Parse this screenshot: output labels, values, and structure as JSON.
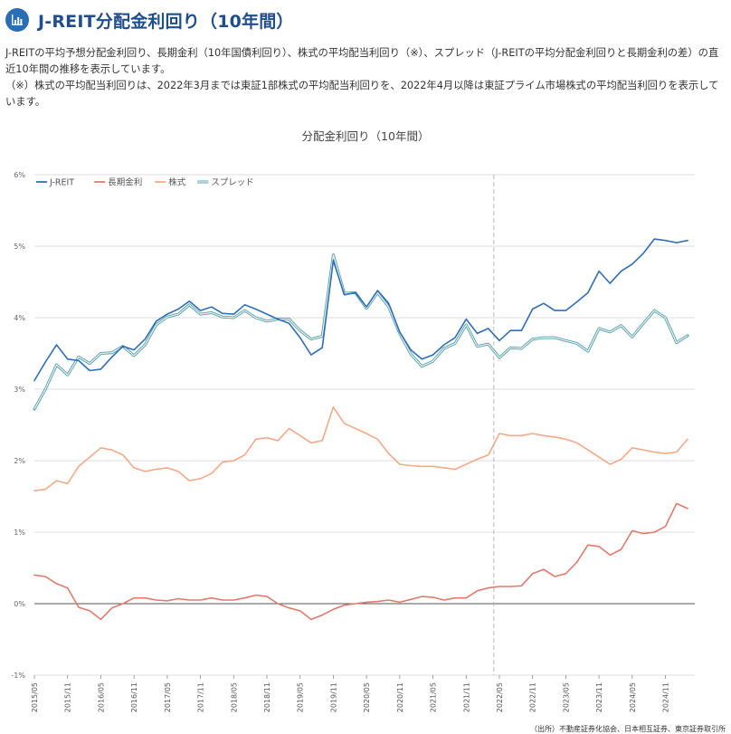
{
  "header": {
    "title": "J-REIT分配金利回り（10年間）",
    "icon": "bar-chart-icon"
  },
  "description": {
    "line1": "J-REITの平均予想分配金利回り、長期金利（10年国債利回り）、株式の平均配当利回り（※）、スプレッド（J-REITの平均分配金利回りと長期金利の差）の直近10年間の推移を表示しています。",
    "line2": "（※）株式の平均配当利回りは、2022年3月までは東証1部株式の平均配当利回りを、2022年4月以降は東証プライム市場株式の平均配当利回りを表示しています。"
  },
  "source": "（出所）不動産証券化協会、日本相互証券、東京証券取引所",
  "chart_data": {
    "type": "line",
    "title": "分配金利回り（10年間）",
    "xlabel": "",
    "ylabel": "",
    "ylim": [
      -1,
      6
    ],
    "y_ticks": [
      "6%",
      "5%",
      "4%",
      "3%",
      "2%",
      "1%",
      "0%",
      "-1%"
    ],
    "x_tick_labels": [
      "2015/05",
      "2015/11",
      "2016/05",
      "2016/11",
      "2017/05",
      "2017/11",
      "2018/05",
      "2018/11",
      "2019/05",
      "2019/11",
      "2020/05",
      "2020/11",
      "2021/05",
      "2021/11",
      "2022/05",
      "2022/11",
      "2023/05",
      "2023/11",
      "2024/05",
      "2024/11"
    ],
    "x": [
      "2015/05",
      "2015/07",
      "2015/09",
      "2015/11",
      "2016/01",
      "2016/03",
      "2016/05",
      "2016/07",
      "2016/09",
      "2016/11",
      "2017/01",
      "2017/03",
      "2017/05",
      "2017/07",
      "2017/09",
      "2017/11",
      "2018/01",
      "2018/03",
      "2018/05",
      "2018/07",
      "2018/09",
      "2018/11",
      "2019/01",
      "2019/03",
      "2019/05",
      "2019/07",
      "2019/09",
      "2019/11",
      "2020/01",
      "2020/03",
      "2020/05",
      "2020/07",
      "2020/09",
      "2020/11",
      "2021/01",
      "2021/03",
      "2021/05",
      "2021/07",
      "2021/09",
      "2021/11",
      "2022/01",
      "2022/03",
      "2022/05",
      "2022/07",
      "2022/09",
      "2022/11",
      "2023/01",
      "2023/03",
      "2023/05",
      "2023/07",
      "2023/09",
      "2023/11",
      "2024/01",
      "2024/03",
      "2024/05",
      "2024/07",
      "2024/09",
      "2024/11",
      "2025/01",
      "2025/03"
    ],
    "reference_line": "2022/04",
    "legend_position": "top-left",
    "grid": true,
    "series": [
      {
        "name": "J-REIT",
        "color": "#2f6db5",
        "values": [
          3.12,
          3.38,
          3.62,
          3.42,
          3.4,
          3.26,
          3.28,
          3.45,
          3.6,
          3.55,
          3.7,
          3.95,
          4.05,
          4.12,
          4.23,
          4.1,
          4.15,
          4.06,
          4.05,
          4.18,
          4.12,
          4.05,
          3.98,
          3.92,
          3.72,
          3.48,
          3.58,
          4.8,
          4.32,
          4.35,
          4.15,
          4.38,
          4.2,
          3.8,
          3.55,
          3.42,
          3.48,
          3.62,
          3.72,
          3.98,
          3.78,
          3.85,
          3.68,
          3.82,
          3.82,
          4.12,
          4.2,
          4.1,
          4.1,
          4.22,
          4.35,
          4.65,
          4.48,
          4.65,
          4.75,
          4.9,
          5.1,
          5.08,
          5.05,
          5.08
        ]
      },
      {
        "name": "長期金利",
        "color": "#de7b6a",
        "values": [
          0.4,
          0.38,
          0.28,
          0.22,
          -0.05,
          -0.1,
          -0.22,
          -0.06,
          0.0,
          0.08,
          0.08,
          0.05,
          0.04,
          0.07,
          0.05,
          0.05,
          0.08,
          0.05,
          0.05,
          0.08,
          0.12,
          0.1,
          0.0,
          -0.06,
          -0.1,
          -0.22,
          -0.16,
          -0.08,
          -0.02,
          0.0,
          0.02,
          0.03,
          0.05,
          0.02,
          0.06,
          0.1,
          0.09,
          0.05,
          0.08,
          0.08,
          0.18,
          0.22,
          0.24,
          0.24,
          0.25,
          0.42,
          0.48,
          0.38,
          0.42,
          0.58,
          0.82,
          0.8,
          0.68,
          0.76,
          1.02,
          0.98,
          1.0,
          1.08,
          1.4,
          1.33
        ]
      },
      {
        "name": "株式",
        "color": "#f2a987",
        "values": [
          1.58,
          1.6,
          1.72,
          1.68,
          1.92,
          2.05,
          2.18,
          2.15,
          2.08,
          1.9,
          1.85,
          1.88,
          1.9,
          1.85,
          1.72,
          1.75,
          1.82,
          1.98,
          2.0,
          2.08,
          2.3,
          2.32,
          2.28,
          2.45,
          2.35,
          2.25,
          2.28,
          2.75,
          2.52,
          2.45,
          2.38,
          2.3,
          2.1,
          1.95,
          1.93,
          1.92,
          1.92,
          1.9,
          1.88,
          1.95,
          2.02,
          2.08,
          2.38,
          2.35,
          2.35,
          2.38,
          2.35,
          2.33,
          2.3,
          2.25,
          2.15,
          2.05,
          1.95,
          2.02,
          2.18,
          2.15,
          2.12,
          2.1,
          2.12,
          2.3
        ]
      },
      {
        "name": "スプレッド",
        "color": "#8fc9d3",
        "values": [
          2.72,
          3.0,
          3.34,
          3.2,
          3.45,
          3.36,
          3.5,
          3.51,
          3.6,
          3.47,
          3.62,
          3.9,
          4.01,
          4.05,
          4.18,
          4.05,
          4.07,
          4.01,
          4.0,
          4.1,
          4.0,
          3.95,
          3.98,
          3.98,
          3.82,
          3.7,
          3.74,
          4.88,
          4.34,
          4.35,
          4.13,
          4.35,
          4.15,
          3.78,
          3.49,
          3.32,
          3.39,
          3.57,
          3.64,
          3.9,
          3.6,
          3.63,
          3.44,
          3.58,
          3.57,
          3.7,
          3.72,
          3.72,
          3.68,
          3.64,
          3.53,
          3.85,
          3.8,
          3.89,
          3.73,
          3.92,
          4.1,
          4.0,
          3.65,
          3.75
        ]
      }
    ]
  }
}
